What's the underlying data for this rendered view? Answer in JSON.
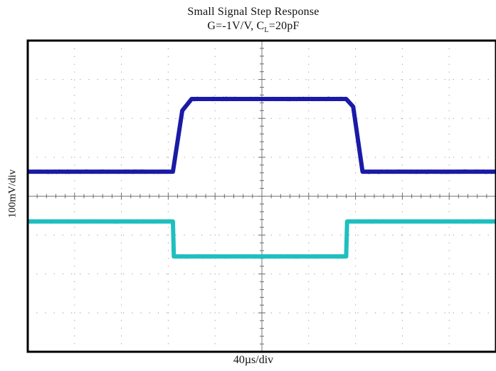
{
  "chart_data": {
    "type": "line",
    "title": "Small Signal Step Response",
    "subtitle_parts": {
      "prefix": "G=-1V/V, C",
      "subscript": "L",
      "suffix": "=20pF"
    },
    "xlabel": "40µs/div",
    "ylabel": "100mV/div",
    "grid": true,
    "x_divisions": 10,
    "y_divisions": 8,
    "x_unit": "div",
    "y_unit": "div",
    "xlim": [
      0,
      10
    ],
    "ylim": [
      -4,
      4
    ],
    "series": [
      {
        "color": "#1a1aa8",
        "x": [
          0,
          3.1,
          3.3,
          3.5,
          6.8,
          6.95,
          7.15,
          10
        ],
        "y": [
          0.63,
          0.63,
          2.2,
          2.5,
          2.5,
          2.3,
          0.63,
          0.63
        ],
        "noise": 0.05
      },
      {
        "color": "#1fbfbf",
        "x": [
          0,
          3.1,
          3.12,
          6.8,
          6.82,
          10
        ],
        "y": [
          -0.65,
          -0.65,
          -1.55,
          -1.55,
          -0.65,
          -0.65
        ],
        "noise": 0.05
      }
    ]
  }
}
